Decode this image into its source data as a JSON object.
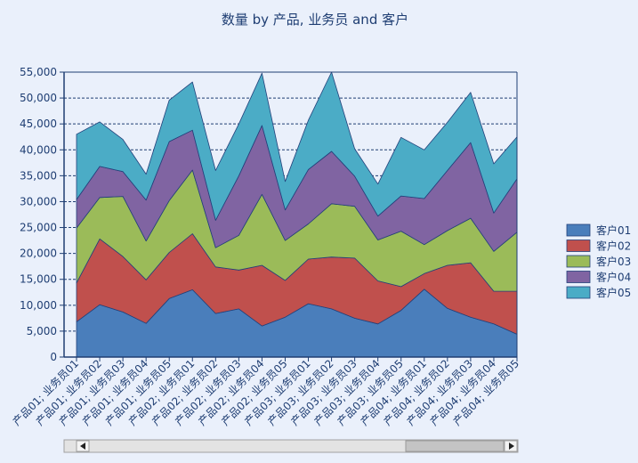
{
  "chart_data": {
    "type": "area",
    "stacked": true,
    "title": "数量 by 产品, 业务员 and 客户",
    "xlabel": "",
    "ylabel": "",
    "ylim": [
      0,
      55000
    ],
    "y_ticks": [
      "0",
      "5,000",
      "10,000",
      "15,000",
      "20,000",
      "25,000",
      "30,000",
      "35,000",
      "40,000",
      "45,000",
      "50,000",
      "55,000"
    ],
    "grid": true,
    "legend_position": "right",
    "categories": [
      "产品01; 业务员01",
      "产品01; 业务员02",
      "产品01; 业务员03",
      "产品01; 业务员04",
      "产品01; 业务员05",
      "产品02; 业务员01",
      "产品02; 业务员02",
      "产品02; 业务员03",
      "产品02; 业务员04",
      "产品02; 业务员05",
      "产品03; 业务员01",
      "产品03; 业务员02",
      "产品03; 业务员03",
      "产品03; 业务员04",
      "产品03; 业务员05",
      "产品04; 业务员01",
      "产品04; 业务员02",
      "产品04; 业务员03",
      "产品04; 业务员04",
      "产品04; 业务员05"
    ],
    "series": [
      {
        "name": "客户01",
        "color": "#4a7ebb",
        "values": [
          6800,
          10100,
          8700,
          6500,
          11300,
          13000,
          8400,
          9300,
          6000,
          7700,
          10300,
          9300,
          7500,
          6400,
          9000,
          13100,
          9400,
          7700,
          6400,
          4400
        ]
      },
      {
        "name": "客户02",
        "color": "#c0504d",
        "values": [
          7500,
          12700,
          10700,
          8400,
          8900,
          10800,
          9000,
          7500,
          11700,
          7100,
          8600,
          10000,
          11600,
          8300,
          4600,
          3000,
          8300,
          10500,
          6300,
          8300
        ]
      },
      {
        "name": "客户03",
        "color": "#9bbb59",
        "values": [
          10600,
          8000,
          11600,
          7500,
          10000,
          12300,
          3700,
          6700,
          13700,
          7700,
          6800,
          10300,
          10000,
          7900,
          10700,
          5600,
          6700,
          8600,
          7700,
          11400
        ]
      },
      {
        "name": "客户04",
        "color": "#8064a2",
        "values": [
          5500,
          6000,
          4800,
          7900,
          11400,
          7700,
          5300,
          11500,
          13300,
          5900,
          10500,
          10100,
          5800,
          4600,
          6800,
          8900,
          11600,
          14600,
          7400,
          10300
        ]
      },
      {
        "name": "客户05",
        "color": "#4bacc6",
        "values": [
          12600,
          8600,
          6200,
          5000,
          8000,
          9300,
          9600,
          10000,
          10100,
          5500,
          9500,
          15300,
          5300,
          6200,
          11300,
          9400,
          9300,
          9700,
          9500,
          8100
        ]
      }
    ]
  }
}
